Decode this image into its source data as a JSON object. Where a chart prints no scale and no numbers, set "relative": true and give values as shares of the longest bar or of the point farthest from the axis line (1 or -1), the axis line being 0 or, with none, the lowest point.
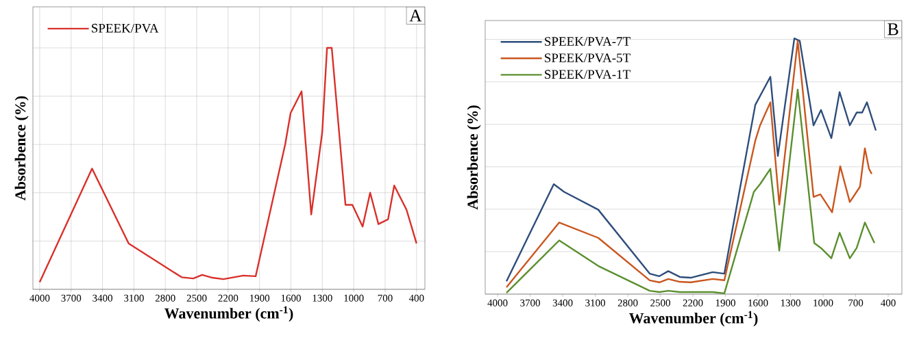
{
  "chart_data": [
    {
      "type": "line",
      "relative": true,
      "xlabel": "Wavenumber (cm$^{-1}$)",
      "ylabel": "Absorbence (%)",
      "annotations": [
        "A"
      ],
      "xlim": [
        4065,
        320
      ],
      "xticks": [
        4000,
        3700,
        3400,
        3100,
        2800,
        2500,
        2200,
        1900,
        1600,
        1300,
        1000,
        700,
        400
      ],
      "grid": true,
      "legend": "top left",
      "tick_labels": "x",
      "series": [
        {
          "name": "SPEEK/PVA",
          "color": "#d9302a",
          "x": [
            4000,
            3500,
            3150,
            2644,
            2533,
            2448,
            2350,
            2245,
            2055,
            1937,
            1655,
            1603,
            1498,
            1406,
            1301,
            1255,
            1210,
            1079,
            1013,
            915,
            843,
            764,
            672,
            613,
            496,
            400
          ],
          "values": [
            0.03,
            0.5,
            0.19,
            0.05,
            0.045,
            0.06,
            0.048,
            0.042,
            0.057,
            0.054,
            0.6,
            0.73,
            0.82,
            0.31,
            0.65,
            1.0,
            1.0,
            0.35,
            0.35,
            0.26,
            0.4,
            0.27,
            0.29,
            0.43,
            0.33,
            0.19
          ]
        }
      ]
    },
    {
      "type": "line",
      "relative": true,
      "xlabel": "Wavenumber (cm$^{-1}$)",
      "ylabel": "Absorbence (%)",
      "annotations": [
        "B"
      ],
      "xlim": [
        4114,
        274
      ],
      "xticks": [
        4000,
        3700,
        3400,
        3100,
        2800,
        2500,
        2200,
        1900,
        1600,
        1300,
        1000,
        700,
        400
      ],
      "grid": "y",
      "legend": "top left",
      "tick_labels": "x",
      "series": [
        {
          "name": "SPEEK/PVA-7T",
          "color": "#2e4d7b",
          "x": [
            3918,
            3482,
            3387,
            3072,
            2598,
            2509,
            2427,
            2320,
            2219,
            2017,
            1910,
            1625,
            1486,
            1417,
            1265,
            1215,
            1088,
            1019,
            924,
            848,
            754,
            691,
            640,
            596,
            514
          ],
          "values": [
            0.05,
            0.43,
            0.4,
            0.33,
            0.08,
            0.07,
            0.09,
            0.067,
            0.064,
            0.086,
            0.08,
            0.74,
            0.85,
            0.54,
            1.0,
            0.99,
            0.66,
            0.72,
            0.61,
            0.79,
            0.66,
            0.71,
            0.71,
            0.75,
            0.64
          ]
        },
        {
          "name": "SPEEK/PVA-5T",
          "color": "#c9561e",
          "x": [
            3918,
            3432,
            3072,
            2598,
            2509,
            2427,
            2320,
            2219,
            2017,
            1910,
            1625,
            1581,
            1486,
            1404,
            1234,
            1088,
            1025,
            917,
            842,
            754,
            660,
            615,
            577,
            552
          ],
          "values": [
            0.027,
            0.28,
            0.22,
            0.054,
            0.046,
            0.059,
            0.048,
            0.046,
            0.059,
            0.054,
            0.6,
            0.66,
            0.75,
            0.35,
            0.99,
            0.38,
            0.39,
            0.32,
            0.5,
            0.36,
            0.42,
            0.57,
            0.49,
            0.47
          ]
        },
        {
          "name": "SPEEK/PVA-1T",
          "color": "#5a8f2e",
          "x": [
            3918,
            3432,
            3072,
            2598,
            2509,
            2427,
            2320,
            2017,
            1910,
            1638,
            1581,
            1486,
            1404,
            1234,
            1082,
            1019,
            924,
            848,
            754,
            691,
            615,
            527
          ],
          "values": [
            0.005,
            0.21,
            0.11,
            0.013,
            0.008,
            0.013,
            0.008,
            0.008,
            0.003,
            0.4,
            0.43,
            0.49,
            0.17,
            0.8,
            0.2,
            0.18,
            0.14,
            0.24,
            0.14,
            0.18,
            0.28,
            0.2
          ]
        }
      ]
    }
  ]
}
